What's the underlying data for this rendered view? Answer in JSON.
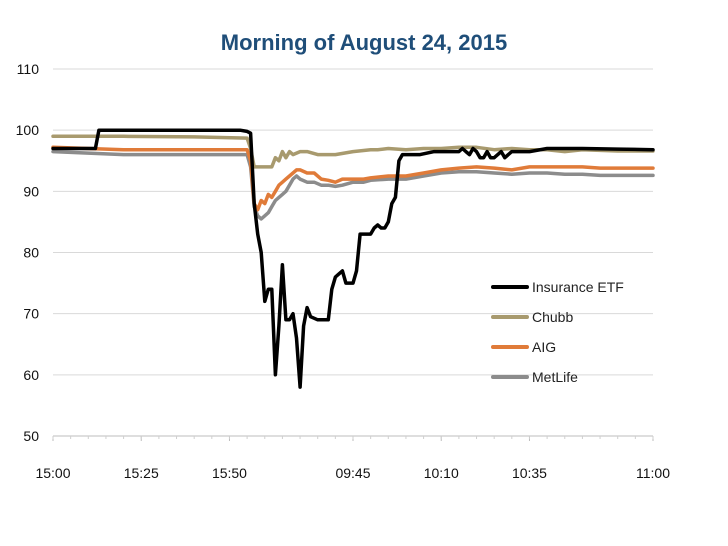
{
  "title": "Morning of August 24, 2015",
  "chart_data": {
    "type": "line",
    "title": "Morning of August 24, 2015",
    "xlabel": "",
    "ylabel": "",
    "ylim": [
      50,
      110
    ],
    "yticks": [
      50,
      60,
      70,
      80,
      90,
      100,
      110
    ],
    "xlim": [
      0,
      170
    ],
    "xticks": [
      {
        "label": "15:00",
        "x": 0
      },
      {
        "label": "15:25",
        "x": 25
      },
      {
        "label": "15:50",
        "x": 50
      },
      {
        "label": "09:45",
        "x": 85
      },
      {
        "label": "10:10",
        "x": 110
      },
      {
        "label": "10:35",
        "x": 135
      },
      {
        "label": "11:00",
        "x": 170
      }
    ],
    "grid": true,
    "legend": "right",
    "series": [
      {
        "name": "Insurance ETF",
        "color": "#000000",
        "points": [
          [
            0,
            97
          ],
          [
            12,
            97
          ],
          [
            13,
            100
          ],
          [
            20,
            100
          ],
          [
            30,
            100
          ],
          [
            40,
            100
          ],
          [
            45,
            100
          ],
          [
            50,
            100
          ],
          [
            53,
            100
          ],
          [
            55,
            99.8
          ],
          [
            56,
            99.5
          ],
          [
            57,
            88
          ],
          [
            58,
            83
          ],
          [
            59,
            80
          ],
          [
            60,
            72
          ],
          [
            61,
            74
          ],
          [
            62,
            74
          ],
          [
            63,
            60
          ],
          [
            64,
            68
          ],
          [
            65,
            78
          ],
          [
            66,
            69
          ],
          [
            67,
            69
          ],
          [
            68,
            70
          ],
          [
            69,
            66
          ],
          [
            70,
            58
          ],
          [
            71,
            68
          ],
          [
            72,
            71
          ],
          [
            73,
            69.5
          ],
          [
            75,
            69
          ],
          [
            78,
            69
          ],
          [
            79,
            74
          ],
          [
            80,
            76
          ],
          [
            81,
            76.5
          ],
          [
            82,
            77
          ],
          [
            83,
            75
          ],
          [
            85,
            75
          ],
          [
            86,
            77
          ],
          [
            87,
            83
          ],
          [
            89,
            83
          ],
          [
            90,
            83
          ],
          [
            91,
            84
          ],
          [
            92,
            84.5
          ],
          [
            93,
            84
          ],
          [
            94,
            84
          ],
          [
            95,
            85
          ],
          [
            96,
            88
          ],
          [
            97,
            89
          ],
          [
            98,
            95
          ],
          [
            99,
            96
          ],
          [
            104,
            96
          ],
          [
            108,
            96.5
          ],
          [
            112,
            96.5
          ],
          [
            115,
            96.5
          ],
          [
            116,
            97
          ],
          [
            117,
            96.5
          ],
          [
            118,
            96
          ],
          [
            119,
            97
          ],
          [
            120,
            96.5
          ],
          [
            121,
            95.5
          ],
          [
            122,
            95.5
          ],
          [
            123,
            96.5
          ],
          [
            124,
            95.5
          ],
          [
            125,
            95.5
          ],
          [
            127,
            96.5
          ],
          [
            128,
            95.5
          ],
          [
            129,
            96
          ],
          [
            130,
            96.5
          ],
          [
            135,
            96.5
          ],
          [
            140,
            97
          ],
          [
            145,
            97
          ],
          [
            150,
            97
          ],
          [
            160,
            96.9
          ],
          [
            170,
            96.8
          ]
        ]
      },
      {
        "name": "Chubb",
        "color": "#a89a6e",
        "points": [
          [
            0,
            99
          ],
          [
            20,
            99
          ],
          [
            40,
            98.9
          ],
          [
            55,
            98.7
          ],
          [
            56,
            97
          ],
          [
            57,
            94
          ],
          [
            60,
            94
          ],
          [
            62,
            94
          ],
          [
            63,
            95.5
          ],
          [
            64,
            95
          ],
          [
            65,
            96.5
          ],
          [
            66,
            95.5
          ],
          [
            67,
            96.5
          ],
          [
            68,
            96
          ],
          [
            70,
            96.5
          ],
          [
            72,
            96.5
          ],
          [
            75,
            96
          ],
          [
            80,
            96
          ],
          [
            85,
            96.5
          ],
          [
            90,
            96.8
          ],
          [
            92,
            96.8
          ],
          [
            95,
            97
          ],
          [
            100,
            96.8
          ],
          [
            105,
            97
          ],
          [
            110,
            97
          ],
          [
            115,
            97.2
          ],
          [
            120,
            97.2
          ],
          [
            125,
            96.8
          ],
          [
            130,
            97
          ],
          [
            135,
            96.8
          ],
          [
            140,
            96.8
          ],
          [
            145,
            96.5
          ],
          [
            150,
            96.8
          ],
          [
            160,
            96.6
          ],
          [
            170,
            96.6
          ]
        ]
      },
      {
        "name": "AIG",
        "color": "#e07b39",
        "points": [
          [
            0,
            97.2
          ],
          [
            20,
            96.8
          ],
          [
            40,
            96.8
          ],
          [
            55,
            96.8
          ],
          [
            56,
            95
          ],
          [
            57,
            88
          ],
          [
            58,
            87
          ],
          [
            59,
            88.5
          ],
          [
            60,
            88
          ],
          [
            61,
            89.5
          ],
          [
            62,
            89
          ],
          [
            63,
            90
          ],
          [
            64,
            91
          ],
          [
            65,
            91.5
          ],
          [
            66,
            92
          ],
          [
            67,
            92.5
          ],
          [
            68,
            93
          ],
          [
            69,
            93.5
          ],
          [
            70,
            93.5
          ],
          [
            72,
            93
          ],
          [
            74,
            93
          ],
          [
            76,
            92
          ],
          [
            78,
            91.8
          ],
          [
            80,
            91.5
          ],
          [
            82,
            92
          ],
          [
            85,
            92
          ],
          [
            88,
            92
          ],
          [
            90,
            92.2
          ],
          [
            95,
            92.5
          ],
          [
            100,
            92.5
          ],
          [
            105,
            93
          ],
          [
            110,
            93.5
          ],
          [
            115,
            93.8
          ],
          [
            120,
            94
          ],
          [
            125,
            93.8
          ],
          [
            130,
            93.5
          ],
          [
            135,
            94
          ],
          [
            140,
            94
          ],
          [
            145,
            94
          ],
          [
            150,
            94
          ],
          [
            155,
            93.8
          ],
          [
            160,
            93.8
          ],
          [
            170,
            93.8
          ]
        ]
      },
      {
        "name": "MetLife",
        "color": "#8c8c8c",
        "points": [
          [
            0,
            96.5
          ],
          [
            20,
            96
          ],
          [
            40,
            96
          ],
          [
            55,
            96
          ],
          [
            56,
            94
          ],
          [
            57,
            87.5
          ],
          [
            58,
            86
          ],
          [
            59,
            85.5
          ],
          [
            60,
            86
          ],
          [
            61,
            86.5
          ],
          [
            62,
            87.5
          ],
          [
            63,
            88.5
          ],
          [
            64,
            89
          ],
          [
            65,
            89.5
          ],
          [
            66,
            90
          ],
          [
            67,
            91
          ],
          [
            68,
            92
          ],
          [
            69,
            92.5
          ],
          [
            70,
            92
          ],
          [
            72,
            91.5
          ],
          [
            74,
            91.5
          ],
          [
            76,
            91
          ],
          [
            78,
            91
          ],
          [
            80,
            90.8
          ],
          [
            82,
            91
          ],
          [
            85,
            91.5
          ],
          [
            88,
            91.5
          ],
          [
            90,
            91.8
          ],
          [
            95,
            92
          ],
          [
            100,
            92
          ],
          [
            105,
            92.5
          ],
          [
            110,
            93
          ],
          [
            115,
            93.2
          ],
          [
            120,
            93.2
          ],
          [
            125,
            93
          ],
          [
            130,
            92.8
          ],
          [
            135,
            93
          ],
          [
            140,
            93
          ],
          [
            145,
            92.8
          ],
          [
            150,
            92.8
          ],
          [
            155,
            92.6
          ],
          [
            160,
            92.6
          ],
          [
            170,
            92.6
          ]
        ]
      }
    ]
  }
}
